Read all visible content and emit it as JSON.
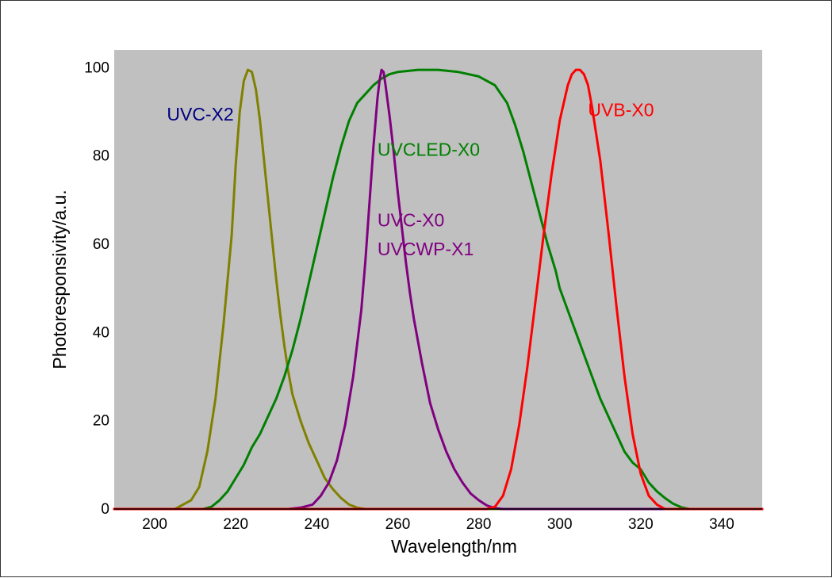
{
  "chart_data": {
    "type": "line",
    "title": "",
    "xlabel": "Wavelength/nm",
    "ylabel": "Photoresponsivity/a.u.",
    "xlim": [
      190,
      350
    ],
    "ylim": [
      0,
      104
    ],
    "x_ticks": [
      200,
      220,
      240,
      260,
      280,
      300,
      320,
      340
    ],
    "y_ticks": [
      0,
      20,
      40,
      60,
      80,
      100
    ],
    "grid": false,
    "legend": "none",
    "plot_background": "#c0c0c0",
    "series": [
      {
        "color": "#808000",
        "points": [
          [
            190,
            0
          ],
          [
            205,
            0
          ],
          [
            207,
            1
          ],
          [
            209,
            2
          ],
          [
            211,
            5
          ],
          [
            213,
            13
          ],
          [
            215,
            25
          ],
          [
            217,
            42
          ],
          [
            219,
            62
          ],
          [
            220,
            78
          ],
          [
            221,
            90
          ],
          [
            222,
            97
          ],
          [
            223,
            99.5
          ],
          [
            224,
            99
          ],
          [
            225,
            95
          ],
          [
            226,
            88
          ],
          [
            227,
            79
          ],
          [
            228,
            70
          ],
          [
            229,
            61
          ],
          [
            230,
            52
          ],
          [
            231,
            44
          ],
          [
            232,
            37
          ],
          [
            233,
            31
          ],
          [
            234,
            26
          ],
          [
            236,
            20
          ],
          [
            238,
            15
          ],
          [
            240,
            11
          ],
          [
            242,
            7
          ],
          [
            244,
            4.5
          ],
          [
            246,
            2.5
          ],
          [
            248,
            1
          ],
          [
            250,
            0.3
          ],
          [
            252,
            0
          ],
          [
            350,
            0
          ]
        ]
      },
      {
        "color": "#008000",
        "points": [
          [
            190,
            0
          ],
          [
            212,
            0
          ],
          [
            214,
            0.5
          ],
          [
            216,
            2
          ],
          [
            218,
            4
          ],
          [
            220,
            7
          ],
          [
            222,
            10
          ],
          [
            224,
            14
          ],
          [
            226,
            17
          ],
          [
            228,
            21
          ],
          [
            230,
            25
          ],
          [
            232,
            30
          ],
          [
            234,
            36
          ],
          [
            236,
            43
          ],
          [
            238,
            51
          ],
          [
            240,
            59
          ],
          [
            242,
            67
          ],
          [
            244,
            75
          ],
          [
            246,
            82
          ],
          [
            248,
            88
          ],
          [
            250,
            92
          ],
          [
            252,
            94
          ],
          [
            254,
            96
          ],
          [
            256,
            97.5
          ],
          [
            258,
            98.5
          ],
          [
            260,
            99
          ],
          [
            265,
            99.5
          ],
          [
            270,
            99.5
          ],
          [
            275,
            99
          ],
          [
            280,
            98
          ],
          [
            284,
            96
          ],
          [
            287,
            92
          ],
          [
            289,
            87
          ],
          [
            291,
            81
          ],
          [
            293,
            74
          ],
          [
            295,
            67
          ],
          [
            297,
            60
          ],
          [
            299,
            54
          ],
          [
            300,
            50
          ],
          [
            302,
            45
          ],
          [
            304,
            40
          ],
          [
            306,
            35
          ],
          [
            308,
            30
          ],
          [
            310,
            25
          ],
          [
            312,
            21
          ],
          [
            314,
            17
          ],
          [
            316,
            13
          ],
          [
            318,
            10.5
          ],
          [
            320,
            9
          ],
          [
            322,
            6
          ],
          [
            324,
            4
          ],
          [
            326,
            2.5
          ],
          [
            328,
            1.2
          ],
          [
            330,
            0.4
          ],
          [
            332,
            0
          ],
          [
            350,
            0
          ]
        ]
      },
      {
        "color": "#800080",
        "points": [
          [
            190,
            0
          ],
          [
            233,
            0
          ],
          [
            236,
            0.3
          ],
          [
            239,
            1
          ],
          [
            241,
            3
          ],
          [
            243,
            6
          ],
          [
            245,
            11
          ],
          [
            247,
            19
          ],
          [
            249,
            30
          ],
          [
            251,
            45
          ],
          [
            252,
            56
          ],
          [
            253,
            69
          ],
          [
            254,
            82
          ],
          [
            255,
            93
          ],
          [
            255.5,
            97
          ],
          [
            256,
            99.5
          ],
          [
            256.5,
            99
          ],
          [
            257,
            96
          ],
          [
            258,
            89
          ],
          [
            259,
            81
          ],
          [
            260,
            72
          ],
          [
            261,
            64
          ],
          [
            262,
            56
          ],
          [
            263,
            49
          ],
          [
            264,
            43
          ],
          [
            266,
            33
          ],
          [
            268,
            24
          ],
          [
            270,
            18
          ],
          [
            272,
            13
          ],
          [
            274,
            9
          ],
          [
            276,
            6
          ],
          [
            278,
            3.5
          ],
          [
            280,
            2
          ],
          [
            282,
            0.8
          ],
          [
            284,
            0.2
          ],
          [
            286,
            0
          ],
          [
            350,
            0
          ]
        ]
      },
      {
        "color": "#ff0000",
        "points": [
          [
            190,
            0
          ],
          [
            282,
            0
          ],
          [
            284,
            0.5
          ],
          [
            286,
            3
          ],
          [
            288,
            9
          ],
          [
            290,
            19
          ],
          [
            292,
            32
          ],
          [
            294,
            47
          ],
          [
            296,
            62
          ],
          [
            298,
            76
          ],
          [
            300,
            88
          ],
          [
            302,
            96
          ],
          [
            303,
            98.5
          ],
          [
            304,
            99.5
          ],
          [
            305,
            99.5
          ],
          [
            306,
            98.5
          ],
          [
            307,
            96
          ],
          [
            308,
            91
          ],
          [
            310,
            79
          ],
          [
            312,
            63
          ],
          [
            314,
            46
          ],
          [
            316,
            30
          ],
          [
            318,
            17
          ],
          [
            320,
            8
          ],
          [
            322,
            3
          ],
          [
            324,
            1
          ],
          [
            326,
            0
          ],
          [
            350,
            0
          ]
        ]
      }
    ],
    "annotations": [
      {
        "text": "UVC-X2",
        "color": "#000080",
        "x": 203,
        "y": 88
      },
      {
        "text": "UVCLED-X0",
        "color": "#008000",
        "x": 255,
        "y": 80
      },
      {
        "text": "UVC-X0",
        "color": "#800080",
        "x": 255,
        "y": 64
      },
      {
        "text": "UVCWP-X1",
        "color": "#800080",
        "x": 255,
        "y": 57.5
      },
      {
        "text": "UVB-X0",
        "color": "#ff0000",
        "x": 307,
        "y": 89
      }
    ]
  }
}
